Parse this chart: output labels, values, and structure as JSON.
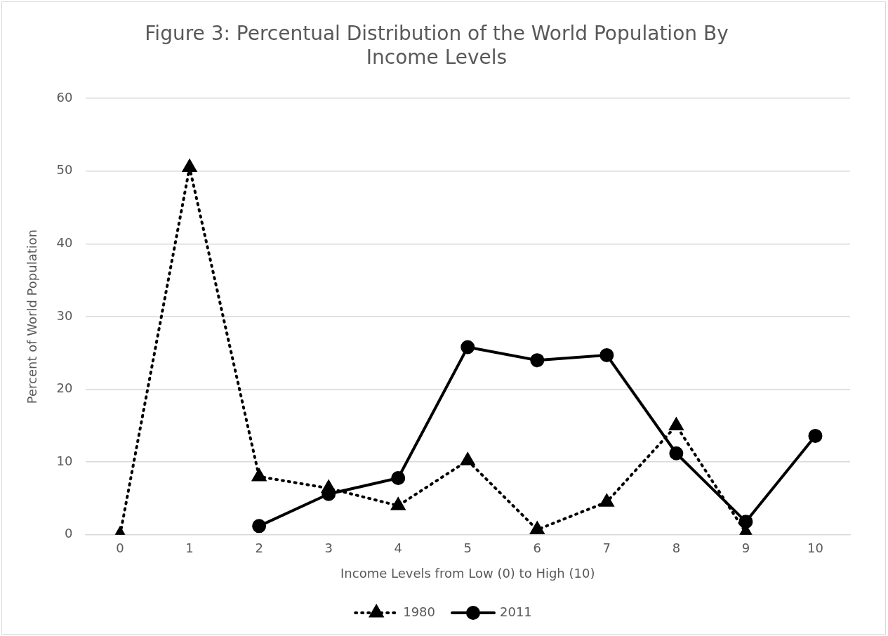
{
  "chart_data": {
    "type": "line",
    "title": "Figure 3: Percentual Distribution of the World Population By Income Levels",
    "xlabel": "Income Levels from Low (0) to High (10)",
    "ylabel": "Percent of World Population",
    "categories": [
      "0",
      "1",
      "2",
      "3",
      "4",
      "5",
      "6",
      "7",
      "8",
      "9",
      "10"
    ],
    "series": [
      {
        "name": "1980",
        "color": "#000000",
        "marker": "triangle",
        "line_style": "dotted",
        "values": [
          0,
          50.5,
          8.0,
          6.4,
          4.0,
          10.2,
          0.7,
          4.5,
          15.0,
          0.3,
          null
        ]
      },
      {
        "name": "2011",
        "color": "#000000",
        "marker": "circle",
        "line_style": "solid",
        "values": [
          null,
          null,
          1.2,
          5.6,
          7.8,
          25.8,
          24.0,
          24.7,
          11.2,
          1.8,
          13.6
        ]
      }
    ],
    "ylim": [
      0,
      60
    ],
    "yticks": [
      0,
      10,
      20,
      30,
      40,
      50,
      60
    ],
    "grid": "y",
    "legend": "bottom"
  }
}
